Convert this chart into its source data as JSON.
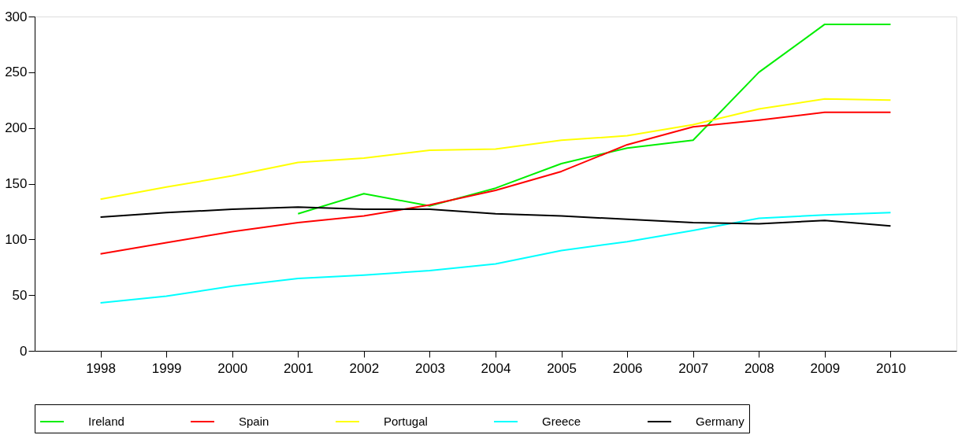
{
  "chart_data": {
    "type": "line",
    "categories": [
      "1998",
      "1999",
      "2000",
      "2001",
      "2002",
      "2003",
      "2004",
      "2005",
      "2006",
      "2007",
      "2008",
      "2009",
      "2010"
    ],
    "series": [
      {
        "name": "Ireland",
        "color": "#00ee00",
        "values": [
          null,
          null,
          null,
          123,
          141,
          130,
          146,
          168,
          182,
          189,
          250,
          293,
          293
        ]
      },
      {
        "name": "Spain",
        "color": "#ff0000",
        "values": [
          87,
          97,
          107,
          115,
          121,
          131,
          144,
          161,
          185,
          201,
          207,
          214,
          214
        ]
      },
      {
        "name": "Portugal",
        "color": "#ffff00",
        "values": [
          136,
          147,
          157,
          169,
          173,
          180,
          181,
          189,
          193,
          203,
          217,
          226,
          225
        ]
      },
      {
        "name": "Greece",
        "color": "#00ffff",
        "values": [
          43,
          49,
          58,
          65,
          68,
          72,
          78,
          90,
          98,
          108,
          119,
          122,
          124
        ]
      },
      {
        "name": "Germany",
        "color": "#000000",
        "values": [
          120,
          124,
          127,
          129,
          127,
          127,
          123,
          121,
          118,
          115,
          114,
          117,
          112
        ]
      }
    ],
    "ylim": [
      0,
      300
    ],
    "yticks": [
      0,
      50,
      100,
      150,
      200,
      250,
      300
    ],
    "grid": false,
    "legend": "bottom",
    "marker": "none",
    "line_style": "solid"
  }
}
